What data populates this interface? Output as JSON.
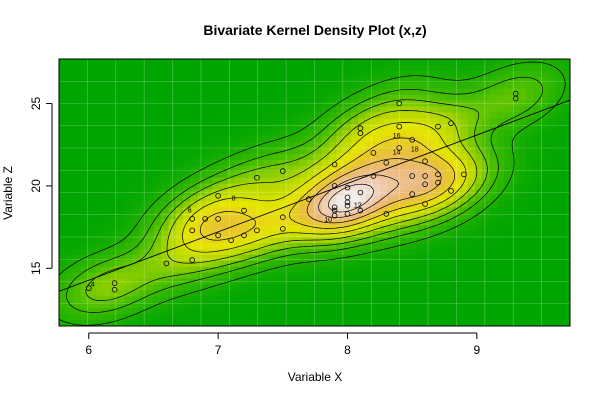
{
  "chart_data": {
    "type": "scatter",
    "title": "Bivariate Kernel Density Plot (x,z)",
    "xlabel": "Variable X",
    "ylabel": "Variable Z",
    "xlim": [
      5.77,
      9.72
    ],
    "ylim": [
      11.5,
      27.7
    ],
    "xticks": [
      "6",
      "7",
      "8",
      "9"
    ],
    "yticks": [
      "15",
      "20",
      "25"
    ],
    "contour_labels": [
      "4",
      "6",
      "8",
      "10",
      "12",
      "14",
      "16",
      "18"
    ],
    "regression_line": {
      "x": [
        5.77,
        9.72
      ],
      "y": [
        13.6,
        25.2
      ]
    },
    "points": [
      [
        6.0,
        13.8
      ],
      [
        6.2,
        13.7
      ],
      [
        6.2,
        14.1
      ],
      [
        6.6,
        15.3
      ],
      [
        6.8,
        15.5
      ],
      [
        6.8,
        17.3
      ],
      [
        6.8,
        18.0
      ],
      [
        6.9,
        18.0
      ],
      [
        7.0,
        18.0
      ],
      [
        7.0,
        17.0
      ],
      [
        7.0,
        19.4
      ],
      [
        7.1,
        16.7
      ],
      [
        7.2,
        17.0
      ],
      [
        7.2,
        18.5
      ],
      [
        7.3,
        17.3
      ],
      [
        7.3,
        20.5
      ],
      [
        7.5,
        17.4
      ],
      [
        7.5,
        18.1
      ],
      [
        7.5,
        20.9
      ],
      [
        7.7,
        19.2
      ],
      [
        7.9,
        18.5
      ],
      [
        7.9,
        18.2
      ],
      [
        7.9,
        18.7
      ],
      [
        7.9,
        20.0
      ],
      [
        7.9,
        21.3
      ],
      [
        8.0,
        19.0
      ],
      [
        8.0,
        19.3
      ],
      [
        8.0,
        18.3
      ],
      [
        8.0,
        19.9
      ],
      [
        8.0,
        18.8
      ],
      [
        8.1,
        18.5
      ],
      [
        8.1,
        19.6
      ],
      [
        8.1,
        23.2
      ],
      [
        8.1,
        23.5
      ],
      [
        8.2,
        20.6
      ],
      [
        8.2,
        22.0
      ],
      [
        8.3,
        18.3
      ],
      [
        8.3,
        21.4
      ],
      [
        8.4,
        22.3
      ],
      [
        8.4,
        23.6
      ],
      [
        8.4,
        25.0
      ],
      [
        8.5,
        19.5
      ],
      [
        8.5,
        20.6
      ],
      [
        8.5,
        22.8
      ],
      [
        8.6,
        18.9
      ],
      [
        8.6,
        20.1
      ],
      [
        8.6,
        20.6
      ],
      [
        8.6,
        21.5
      ],
      [
        8.7,
        20.2
      ],
      [
        8.7,
        20.7
      ],
      [
        8.7,
        23.6
      ],
      [
        8.8,
        19.7
      ],
      [
        8.8,
        23.8
      ],
      [
        8.9,
        20.7
      ],
      [
        9.3,
        25.3
      ],
      [
        9.3,
        25.6
      ]
    ]
  },
  "colors": {
    "background": "#ffffff",
    "low_density": "#00a600",
    "mid_density": "#e6e600",
    "high_density": "#f2f2f2",
    "contour_line": "#000000",
    "regression_line": "#000000",
    "grid": "#ffffff"
  }
}
